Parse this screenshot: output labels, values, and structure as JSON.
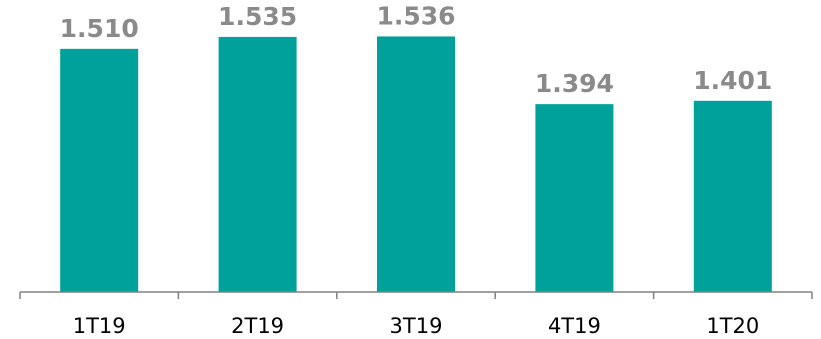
{
  "chart_data": {
    "type": "bar",
    "categories": [
      "1T19",
      "2T19",
      "3T19",
      "4T19",
      "1T20"
    ],
    "values": [
      1510,
      1535,
      1536,
      1394,
      1401
    ],
    "value_labels": [
      "1.510",
      "1.535",
      "1.536",
      "1.394",
      "1.401"
    ],
    "title": "",
    "xlabel": "",
    "ylabel": "",
    "ylim": [
      1000,
      1560
    ],
    "grid": false,
    "legend": "none",
    "colors": {
      "bar": "#00a19a",
      "value_label": "#8a8a8a",
      "axis": "#808080",
      "category_label": "#000000"
    }
  }
}
